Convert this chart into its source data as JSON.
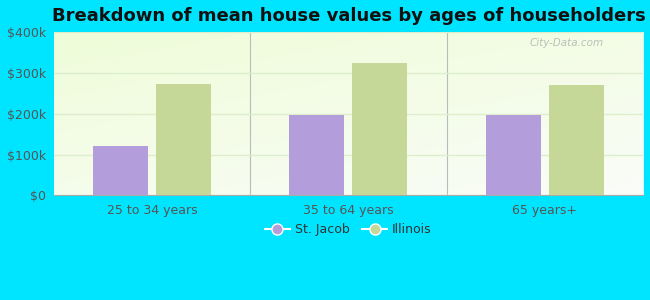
{
  "title": "Breakdown of mean house values by ages of householders",
  "categories": [
    "25 to 34 years",
    "35 to 64 years",
    "65 years+"
  ],
  "st_jacob_values": [
    120000,
    197000,
    196000
  ],
  "illinois_values": [
    272000,
    323000,
    270000
  ],
  "st_jacob_color": "#b39ddb",
  "illinois_color": "#c5d898",
  "ylim": [
    0,
    400000
  ],
  "yticks": [
    0,
    100000,
    200000,
    300000,
    400000
  ],
  "ytick_labels": [
    "$0",
    "$100k",
    "$200k",
    "$300k",
    "$400k"
  ],
  "outer_bg_color": "#00e5ff",
  "plot_bg_color": "#e8f5e0",
  "bar_width": 0.28,
  "legend_labels": [
    "St. Jacob",
    "Illinois"
  ],
  "watermark": "City-Data.com",
  "title_fontsize": 13,
  "axis_fontsize": 9,
  "legend_fontsize": 9,
  "grid_color": "#ddeecc",
  "tick_color": "#555555"
}
